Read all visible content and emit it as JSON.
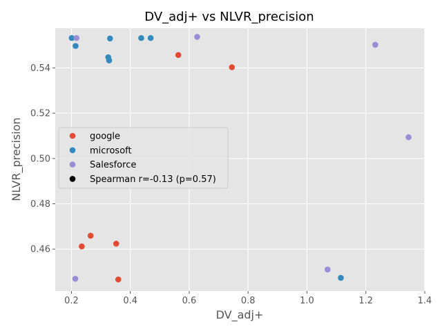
{
  "chart_data": {
    "type": "scatter",
    "title": "DV_adj+ vs NLVR_precision",
    "xlabel": "DV_adj+",
    "ylabel": "NLVR_precision",
    "xlim": [
      0.145,
      1.4
    ],
    "ylim": [
      0.4415,
      0.5575
    ],
    "x_ticks": [
      "0.2",
      "0.4",
      "0.6",
      "0.8",
      "1.0",
      "1.2",
      "1.4"
    ],
    "y_ticks": [
      "0.46",
      "0.48",
      "0.50",
      "0.52",
      "0.54"
    ],
    "grid": true,
    "legend_position": "center-left",
    "series": [
      {
        "name": "google",
        "color": "#E24A33",
        "points": [
          {
            "x": 0.563,
            "y": 0.5457
          },
          {
            "x": 0.745,
            "y": 0.5403
          },
          {
            "x": 0.265,
            "y": 0.4659
          },
          {
            "x": 0.235,
            "y": 0.4612
          },
          {
            "x": 0.352,
            "y": 0.4624
          },
          {
            "x": 0.359,
            "y": 0.4466
          }
        ]
      },
      {
        "name": "microsoft",
        "color": "#348ABD",
        "points": [
          {
            "x": 0.201,
            "y": 0.5532
          },
          {
            "x": 0.214,
            "y": 0.5497
          },
          {
            "x": 0.331,
            "y": 0.553
          },
          {
            "x": 0.437,
            "y": 0.5532
          },
          {
            "x": 0.469,
            "y": 0.5532
          },
          {
            "x": 0.325,
            "y": 0.5447
          },
          {
            "x": 0.328,
            "y": 0.5433
          },
          {
            "x": 1.115,
            "y": 0.4473
          }
        ]
      },
      {
        "name": "Salesforce",
        "color": "#988ED5",
        "points": [
          {
            "x": 0.217,
            "y": 0.5532
          },
          {
            "x": 0.627,
            "y": 0.5537
          },
          {
            "x": 1.232,
            "y": 0.5502
          },
          {
            "x": 1.345,
            "y": 0.5094
          },
          {
            "x": 1.07,
            "y": 0.451
          },
          {
            "x": 0.213,
            "y": 0.4469
          }
        ]
      }
    ],
    "legend": [
      {
        "label": "google",
        "color": "#E24A33"
      },
      {
        "label": "microsoft",
        "color": "#348ABD"
      },
      {
        "label": "Salesforce",
        "color": "#988ED5"
      },
      {
        "label": "Spearman r=-0.13 (p=0.57)",
        "color": "#000000"
      }
    ]
  }
}
